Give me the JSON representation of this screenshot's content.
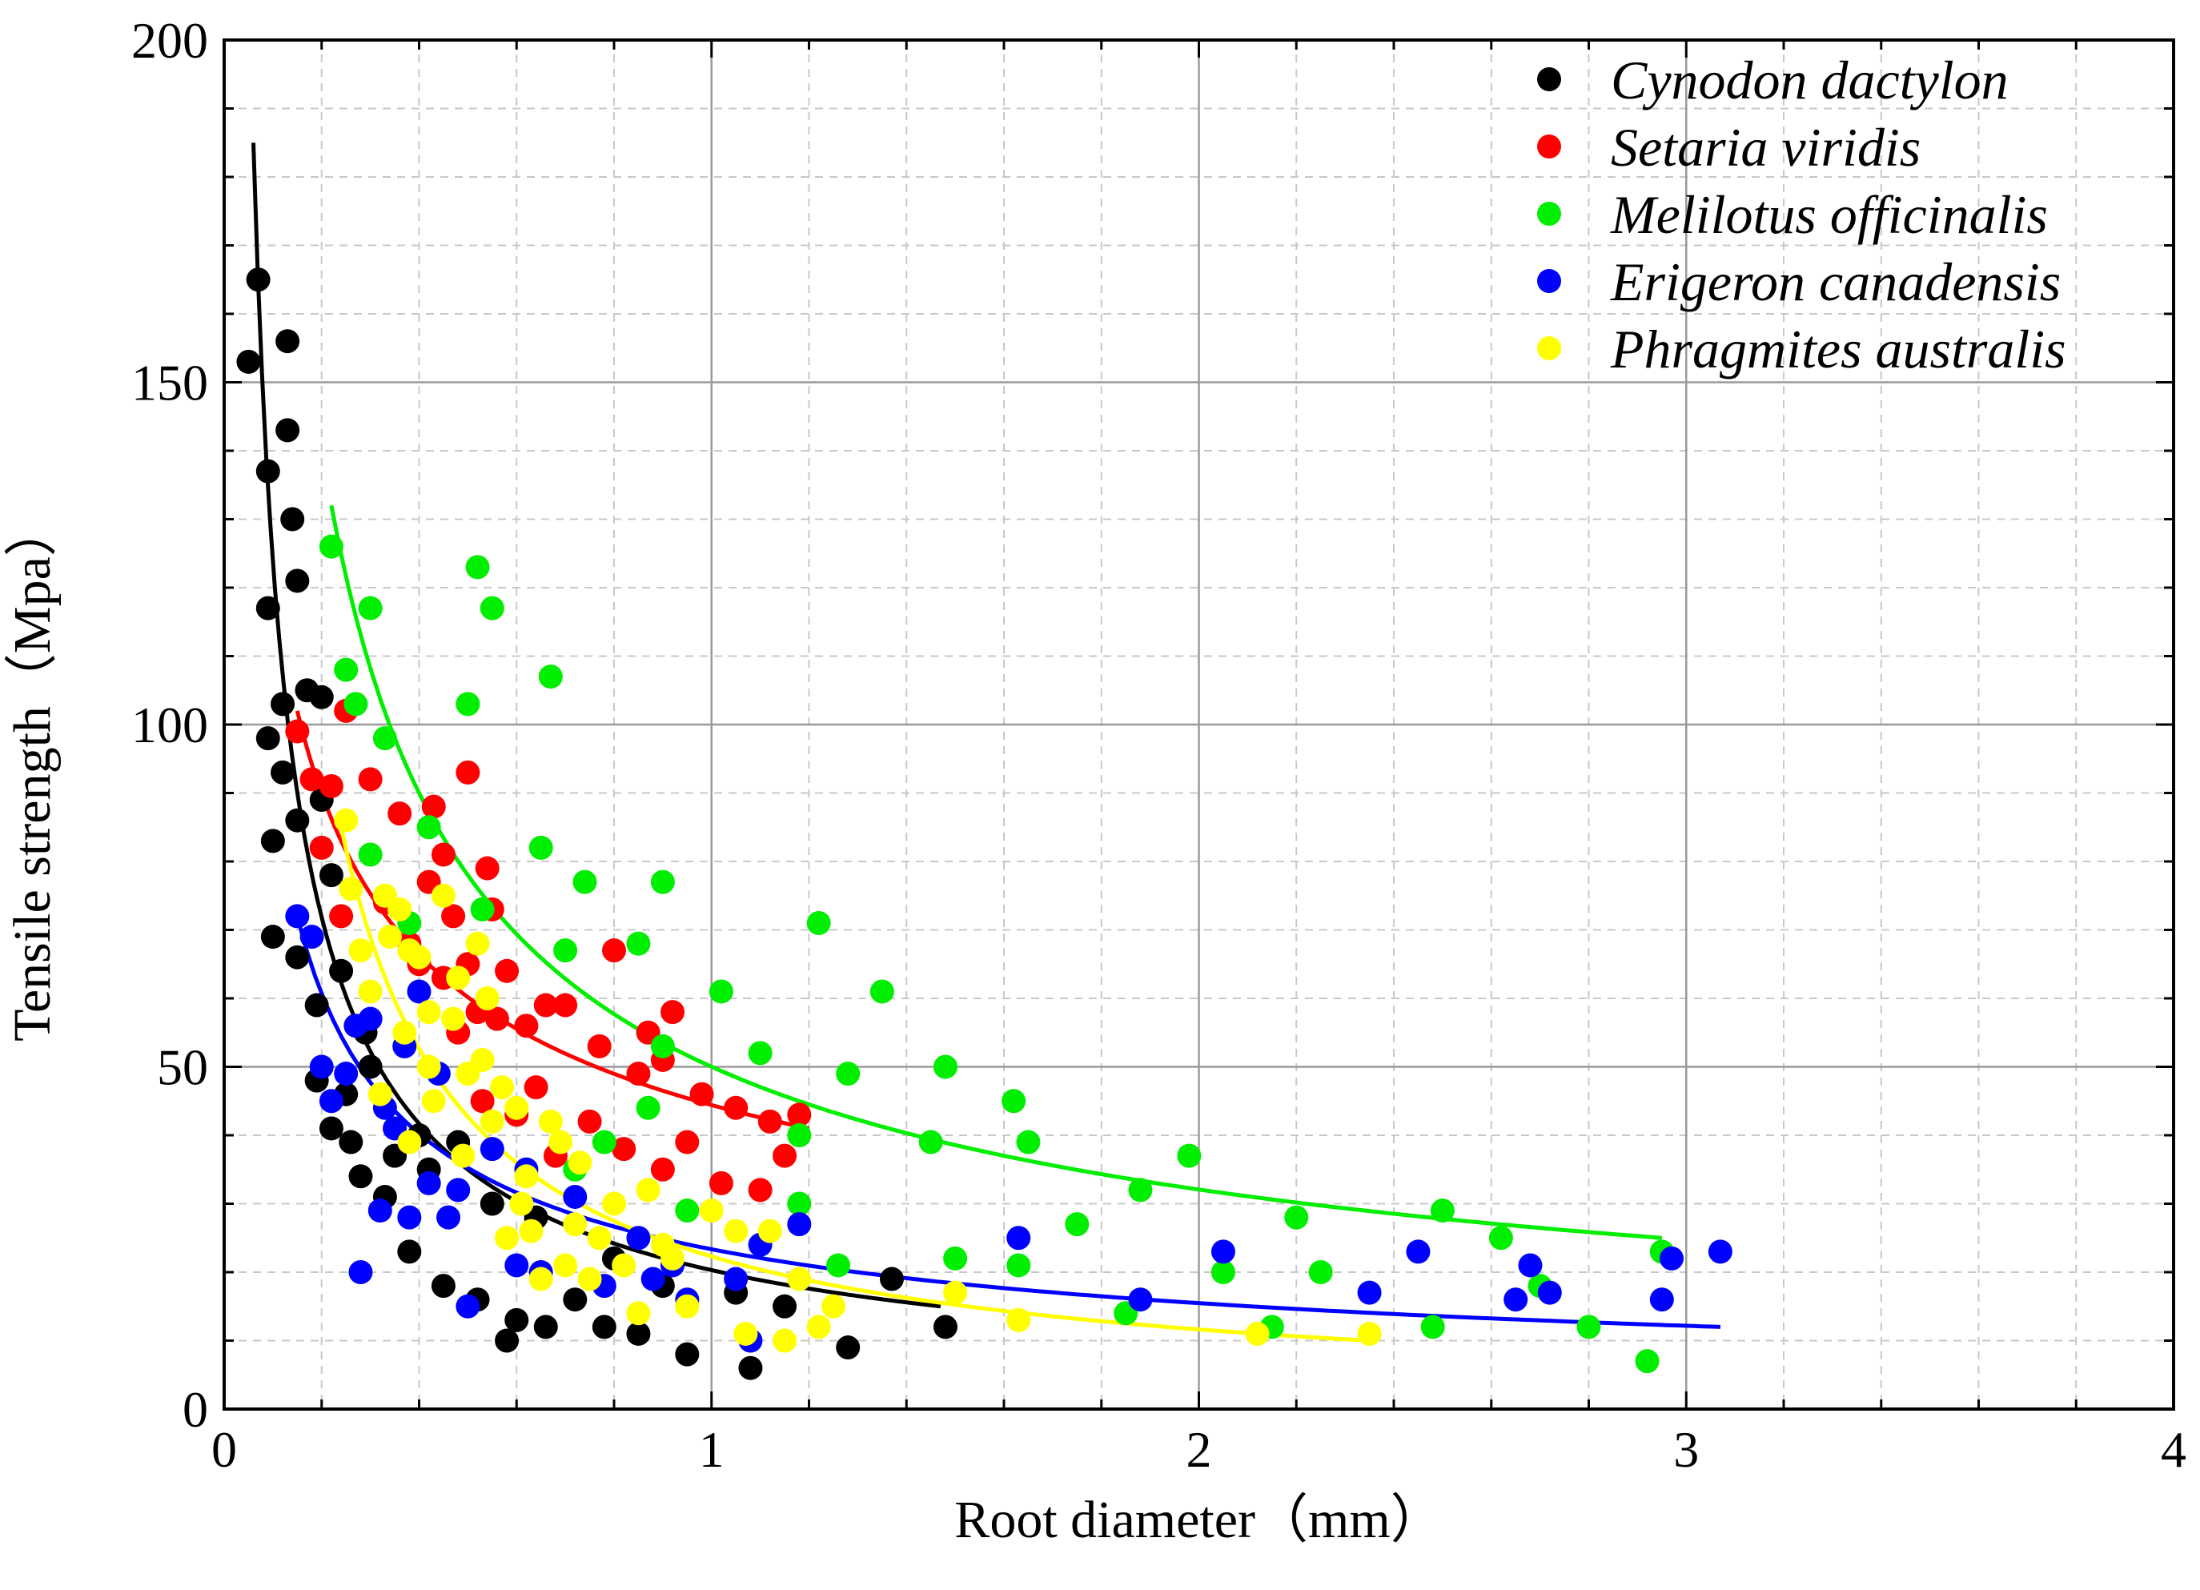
{
  "chart_data": {
    "type": "scatter",
    "title": "",
    "xlabel": "Root diameter（mm）",
    "ylabel": "Tensile strength（Mpa）",
    "xlim": [
      0,
      4
    ],
    "ylim": [
      0,
      200
    ],
    "x_ticks": [
      0,
      1,
      2,
      3,
      4
    ],
    "y_ticks": [
      0,
      50,
      100,
      150,
      200
    ],
    "grid": true,
    "legend_position": "top-right",
    "series": [
      {
        "name": "Cynodon dactylon",
        "color": "#000000",
        "points": [
          [
            0.05,
            153
          ],
          [
            0.07,
            165
          ],
          [
            0.09,
            137
          ],
          [
            0.09,
            117
          ],
          [
            0.09,
            98
          ],
          [
            0.1,
            83
          ],
          [
            0.1,
            69
          ],
          [
            0.12,
            103
          ],
          [
            0.12,
            93
          ],
          [
            0.13,
            156
          ],
          [
            0.13,
            143
          ],
          [
            0.14,
            130
          ],
          [
            0.15,
            121
          ],
          [
            0.15,
            86
          ],
          [
            0.15,
            66
          ],
          [
            0.17,
            105
          ],
          [
            0.19,
            59
          ],
          [
            0.19,
            48
          ],
          [
            0.2,
            104
          ],
          [
            0.2,
            89
          ],
          [
            0.22,
            78
          ],
          [
            0.22,
            41
          ],
          [
            0.24,
            64
          ],
          [
            0.25,
            46
          ],
          [
            0.26,
            39
          ],
          [
            0.28,
            34
          ],
          [
            0.29,
            55
          ],
          [
            0.3,
            50
          ],
          [
            0.33,
            31
          ],
          [
            0.35,
            37
          ],
          [
            0.38,
            23
          ],
          [
            0.4,
            40
          ],
          [
            0.42,
            35
          ],
          [
            0.45,
            18
          ],
          [
            0.48,
            39
          ],
          [
            0.52,
            16
          ],
          [
            0.55,
            30
          ],
          [
            0.58,
            10
          ],
          [
            0.6,
            13
          ],
          [
            0.64,
            28
          ],
          [
            0.66,
            12
          ],
          [
            0.72,
            16
          ],
          [
            0.78,
            12
          ],
          [
            0.8,
            22
          ],
          [
            0.85,
            11
          ],
          [
            0.9,
            18
          ],
          [
            0.95,
            8
          ],
          [
            1.05,
            17
          ],
          [
            1.08,
            6
          ],
          [
            1.15,
            15
          ],
          [
            1.28,
            9
          ],
          [
            1.37,
            19
          ],
          [
            1.48,
            12
          ]
        ],
        "fit": {
          "x_start": 0.06,
          "x_end": 1.47,
          "y_start": 185,
          "y_end": 15
        }
      },
      {
        "name": "Setaria viridis",
        "color": "#ff0000",
        "points": [
          [
            0.15,
            99
          ],
          [
            0.18,
            92
          ],
          [
            0.2,
            82
          ],
          [
            0.22,
            91
          ],
          [
            0.24,
            72
          ],
          [
            0.25,
            102
          ],
          [
            0.3,
            92
          ],
          [
            0.33,
            74
          ],
          [
            0.36,
            87
          ],
          [
            0.38,
            68
          ],
          [
            0.4,
            65
          ],
          [
            0.42,
            77
          ],
          [
            0.43,
            88
          ],
          [
            0.45,
            63
          ],
          [
            0.45,
            81
          ],
          [
            0.47,
            72
          ],
          [
            0.48,
            55
          ],
          [
            0.5,
            93
          ],
          [
            0.5,
            65
          ],
          [
            0.52,
            58
          ],
          [
            0.53,
            45
          ],
          [
            0.54,
            79
          ],
          [
            0.55,
            73
          ],
          [
            0.56,
            57
          ],
          [
            0.58,
            64
          ],
          [
            0.6,
            43
          ],
          [
            0.62,
            56
          ],
          [
            0.64,
            47
          ],
          [
            0.66,
            59
          ],
          [
            0.68,
            37
          ],
          [
            0.7,
            59
          ],
          [
            0.75,
            42
          ],
          [
            0.77,
            53
          ],
          [
            0.8,
            67
          ],
          [
            0.82,
            38
          ],
          [
            0.85,
            49
          ],
          [
            0.87,
            55
          ],
          [
            0.9,
            35
          ],
          [
            0.9,
            51
          ],
          [
            0.92,
            58
          ],
          [
            0.95,
            39
          ],
          [
            0.98,
            46
          ],
          [
            1.02,
            33
          ],
          [
            1.05,
            44
          ],
          [
            1.1,
            32
          ],
          [
            1.12,
            42
          ],
          [
            1.15,
            37
          ],
          [
            1.18,
            43
          ]
        ],
        "fit": {
          "x_start": 0.15,
          "x_end": 1.2,
          "y_start": 102,
          "y_end": 41
        }
      },
      {
        "name": "Melilotus officinalis",
        "color": "#00ee00",
        "points": [
          [
            0.22,
            126
          ],
          [
            0.25,
            108
          ],
          [
            0.27,
            103
          ],
          [
            0.3,
            81
          ],
          [
            0.3,
            117
          ],
          [
            0.33,
            98
          ],
          [
            0.38,
            71
          ],
          [
            0.42,
            85
          ],
          [
            0.5,
            103
          ],
          [
            0.52,
            123
          ],
          [
            0.53,
            73
          ],
          [
            0.55,
            117
          ],
          [
            0.65,
            82
          ],
          [
            0.67,
            107
          ],
          [
            0.7,
            67
          ],
          [
            0.72,
            35
          ],
          [
            0.74,
            77
          ],
          [
            0.78,
            39
          ],
          [
            0.85,
            68
          ],
          [
            0.87,
            44
          ],
          [
            0.9,
            77
          ],
          [
            0.9,
            53
          ],
          [
            0.95,
            29
          ],
          [
            1.02,
            61
          ],
          [
            1.1,
            52
          ],
          [
            1.18,
            40
          ],
          [
            1.18,
            30
          ],
          [
            1.22,
            71
          ],
          [
            1.26,
            21
          ],
          [
            1.28,
            49
          ],
          [
            1.35,
            61
          ],
          [
            1.45,
            39
          ],
          [
            1.48,
            50
          ],
          [
            1.5,
            22
          ],
          [
            1.62,
            45
          ],
          [
            1.63,
            21
          ],
          [
            1.65,
            39
          ],
          [
            1.75,
            27
          ],
          [
            1.85,
            14
          ],
          [
            1.88,
            32
          ],
          [
            1.98,
            37
          ],
          [
            2.05,
            20
          ],
          [
            2.15,
            12
          ],
          [
            2.2,
            28
          ],
          [
            2.25,
            20
          ],
          [
            2.48,
            12
          ],
          [
            2.5,
            29
          ],
          [
            2.62,
            25
          ],
          [
            2.7,
            18
          ],
          [
            2.8,
            12
          ],
          [
            2.92,
            7
          ],
          [
            2.95,
            23
          ]
        ],
        "fit": {
          "x_start": 0.22,
          "x_end": 2.95,
          "y_start": 132,
          "y_end": 25
        }
      },
      {
        "name": "Erigeron canadensis",
        "color": "#0000ff",
        "points": [
          [
            0.15,
            72
          ],
          [
            0.18,
            69
          ],
          [
            0.2,
            50
          ],
          [
            0.22,
            45
          ],
          [
            0.25,
            49
          ],
          [
            0.27,
            56
          ],
          [
            0.28,
            20
          ],
          [
            0.3,
            57
          ],
          [
            0.32,
            29
          ],
          [
            0.33,
            44
          ],
          [
            0.35,
            41
          ],
          [
            0.37,
            53
          ],
          [
            0.38,
            28
          ],
          [
            0.4,
            61
          ],
          [
            0.42,
            33
          ],
          [
            0.44,
            49
          ],
          [
            0.46,
            28
          ],
          [
            0.48,
            32
          ],
          [
            0.5,
            15
          ],
          [
            0.55,
            38
          ],
          [
            0.6,
            21
          ],
          [
            0.62,
            35
          ],
          [
            0.65,
            20
          ],
          [
            0.72,
            31
          ],
          [
            0.78,
            18
          ],
          [
            0.85,
            25
          ],
          [
            0.88,
            19
          ],
          [
            0.92,
            21
          ],
          [
            0.95,
            16
          ],
          [
            1.05,
            19
          ],
          [
            1.08,
            10
          ],
          [
            1.1,
            24
          ],
          [
            1.18,
            27
          ],
          [
            1.63,
            25
          ],
          [
            1.88,
            16
          ],
          [
            2.05,
            23
          ],
          [
            2.35,
            17
          ],
          [
            2.45,
            23
          ],
          [
            2.65,
            16
          ],
          [
            2.68,
            21
          ],
          [
            2.72,
            17
          ],
          [
            2.95,
            16
          ],
          [
            2.97,
            22
          ],
          [
            3.07,
            23
          ]
        ],
        "fit": {
          "x_start": 0.15,
          "x_end": 3.07,
          "y_start": 72,
          "y_end": 12
        }
      },
      {
        "name": "Phragmites australis",
        "color": "#ffff00",
        "points": [
          [
            0.25,
            86
          ],
          [
            0.26,
            76
          ],
          [
            0.28,
            67
          ],
          [
            0.3,
            61
          ],
          [
            0.32,
            46
          ],
          [
            0.33,
            75
          ],
          [
            0.34,
            69
          ],
          [
            0.36,
            73
          ],
          [
            0.37,
            55
          ],
          [
            0.38,
            39
          ],
          [
            0.38,
            67
          ],
          [
            0.4,
            66
          ],
          [
            0.42,
            58
          ],
          [
            0.42,
            50
          ],
          [
            0.43,
            45
          ],
          [
            0.45,
            75
          ],
          [
            0.47,
            57
          ],
          [
            0.48,
            63
          ],
          [
            0.49,
            37
          ],
          [
            0.5,
            49
          ],
          [
            0.52,
            68
          ],
          [
            0.53,
            51
          ],
          [
            0.54,
            60
          ],
          [
            0.55,
            42
          ],
          [
            0.57,
            47
          ],
          [
            0.58,
            25
          ],
          [
            0.6,
            44
          ],
          [
            0.61,
            30
          ],
          [
            0.62,
            34
          ],
          [
            0.63,
            26
          ],
          [
            0.65,
            19
          ],
          [
            0.67,
            42
          ],
          [
            0.69,
            39
          ],
          [
            0.7,
            21
          ],
          [
            0.72,
            27
          ],
          [
            0.73,
            36
          ],
          [
            0.75,
            19
          ],
          [
            0.77,
            25
          ],
          [
            0.8,
            30
          ],
          [
            0.82,
            21
          ],
          [
            0.85,
            14
          ],
          [
            0.87,
            32
          ],
          [
            0.9,
            24
          ],
          [
            0.92,
            22
          ],
          [
            0.95,
            15
          ],
          [
            1.0,
            29
          ],
          [
            1.05,
            26
          ],
          [
            1.07,
            11
          ],
          [
            1.12,
            26
          ],
          [
            1.15,
            10
          ],
          [
            1.18,
            19
          ],
          [
            1.22,
            12
          ],
          [
            1.25,
            15
          ],
          [
            1.5,
            17
          ],
          [
            1.63,
            13
          ],
          [
            2.12,
            11
          ],
          [
            2.35,
            11
          ]
        ],
        "fit": {
          "x_start": 0.24,
          "x_end": 2.35,
          "y_start": 85,
          "y_end": 10
        }
      }
    ]
  }
}
